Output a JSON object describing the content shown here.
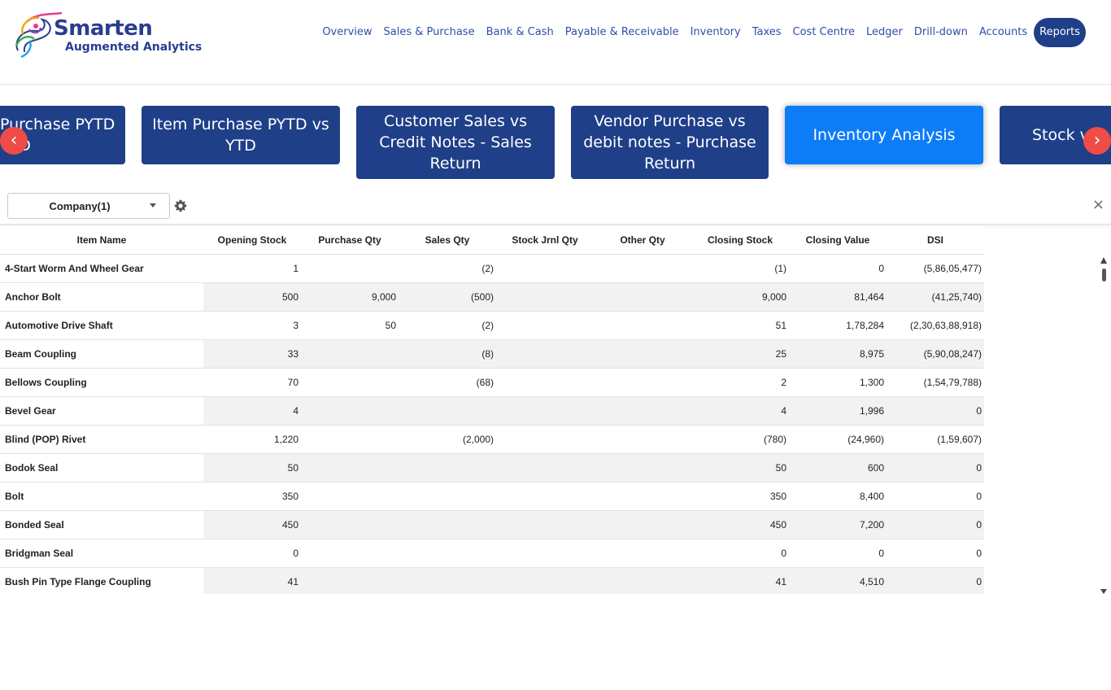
{
  "brand": {
    "name": "Smarten",
    "tagline": "Augmented Analytics"
  },
  "nav": {
    "items": [
      "Overview",
      "Sales & Purchase",
      "Bank & Cash",
      "Payable & Receivable",
      "Inventory",
      "Taxes",
      "Cost Centre",
      "Ledger",
      "Drill-down",
      "Accounts",
      "Reports"
    ],
    "active": "Reports"
  },
  "carousel": {
    "cards": [
      "Purchase PYTD vs YTD",
      "Item Purchase PYTD vs YTD",
      "Customer Sales vs Credit Notes - Sales Return",
      "Vendor Purchase vs debit notes - Purchase Return",
      "Inventory Analysis",
      "Stock v"
    ],
    "visible_text": [
      "Purchase PYTD\nYTD",
      "Item Purchase PYTD vs\nYTD",
      "Customer Sales vs\nCredit Notes - Sales\nReturn",
      "Vendor Purchase vs\ndebit notes - Purchase\nReturn",
      "Inventory Analysis",
      "Stock v"
    ],
    "active": "Inventory Analysis",
    "prev_glyph": "‹",
    "next_glyph": "›"
  },
  "toolbar": {
    "company_filter": "Company(1)",
    "close_glyph": "×"
  },
  "table": {
    "columns": [
      "Item Name",
      "Opening Stock",
      "Purchase Qty",
      "Sales Qty",
      "Stock Jrnl Qty",
      "Other Qty",
      "Closing Stock",
      "Closing Value",
      "DSI"
    ],
    "rows": [
      [
        "4-Start Worm And Wheel Gear",
        "1",
        "",
        "(2)",
        "",
        "",
        "(1)",
        "0",
        "(5,86,05,477)"
      ],
      [
        "Anchor Bolt",
        "500",
        "9,000",
        "(500)",
        "",
        "",
        "9,000",
        "81,464",
        "(41,25,740)"
      ],
      [
        "Automotive Drive Shaft",
        "3",
        "50",
        "(2)",
        "",
        "",
        "51",
        "1,78,284",
        "(2,30,63,88,918)"
      ],
      [
        "Beam Coupling",
        "33",
        "",
        "(8)",
        "",
        "",
        "25",
        "8,975",
        "(5,90,08,247)"
      ],
      [
        "Bellows Coupling",
        "70",
        "",
        "(68)",
        "",
        "",
        "2",
        "1,300",
        "(1,54,79,788)"
      ],
      [
        "Bevel Gear",
        "4",
        "",
        "",
        "",
        "",
        "4",
        "1,996",
        "0"
      ],
      [
        "Blind (POP) Rivet",
        "1,220",
        "",
        "(2,000)",
        "",
        "",
        "(780)",
        "(24,960)",
        "(1,59,607)"
      ],
      [
        "Bodok Seal",
        "50",
        "",
        "",
        "",
        "",
        "50",
        "600",
        "0"
      ],
      [
        "Bolt",
        "350",
        "",
        "",
        "",
        "",
        "350",
        "8,400",
        "0"
      ],
      [
        "Bonded Seal",
        "450",
        "",
        "",
        "",
        "",
        "450",
        "7,200",
        "0"
      ],
      [
        "Bridgman Seal",
        "0",
        "",
        "",
        "",
        "",
        "0",
        "0",
        "0"
      ],
      [
        "Bush Pin Type Flange Coupling",
        "41",
        "",
        "",
        "",
        "",
        "41",
        "4,510",
        "0"
      ]
    ]
  },
  "colors": {
    "primary": "#1f3f88",
    "active_card": "#0d7cf7",
    "arrow": "#ef4b47",
    "nav_text": "#2f4fa8"
  },
  "icons": {
    "gear": "gear-icon",
    "close": "close-icon",
    "prev": "chevron-left-icon",
    "next": "chevron-right-icon",
    "dropdown": "caret-down-icon"
  }
}
